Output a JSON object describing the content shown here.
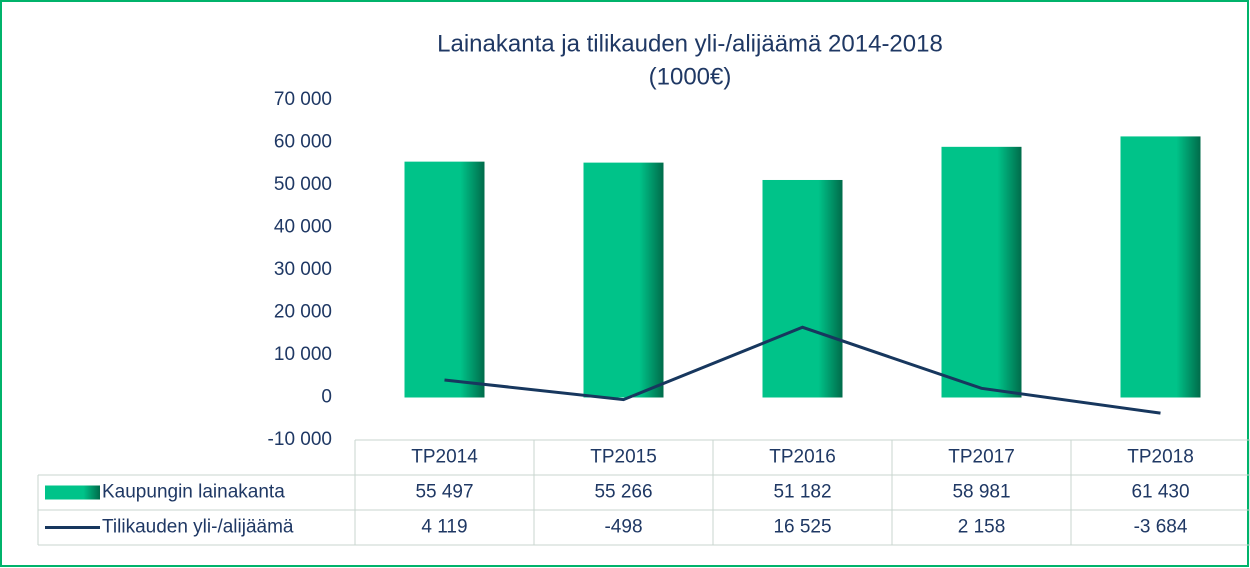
{
  "chart_data": {
    "type": "bar",
    "title": "Lainakanta ja tilikauden yli-/alijäämä 2014-2018",
    "subtitle": "(1000€)",
    "categories": [
      "TP2014",
      "TP2015",
      "TP2016",
      "TP2017",
      "TP2018"
    ],
    "series": [
      {
        "name": "Kaupungin lainakanta",
        "type": "bar",
        "color": "#00c389",
        "values": [
          55497,
          55266,
          51182,
          58981,
          61430
        ],
        "value_labels": [
          "55 497",
          "55 266",
          "51 182",
          "58 981",
          "61 430"
        ]
      },
      {
        "name": "Tilikauden yli-/alijäämä",
        "type": "line",
        "color": "#17375e",
        "values": [
          4119,
          -498,
          16525,
          2158,
          -3684
        ],
        "value_labels": [
          "4 119",
          "-498",
          "16 525",
          "2 158",
          "-3 684"
        ]
      }
    ],
    "ylim": [
      -10000,
      70000
    ],
    "yticks": [
      {
        "value": -10000,
        "label": "-10 000"
      },
      0,
      {
        "value": 10000,
        "label": "10 000"
      },
      {
        "value": 20000,
        "label": "20 000"
      },
      {
        "value": 30000,
        "label": "30 000"
      },
      {
        "value": 40000,
        "label": "40 000"
      },
      {
        "value": 50000,
        "label": "50 000"
      },
      {
        "value": 60000,
        "label": "60 000"
      },
      {
        "value": 70000,
        "label": "70 000"
      }
    ],
    "grid": false
  }
}
